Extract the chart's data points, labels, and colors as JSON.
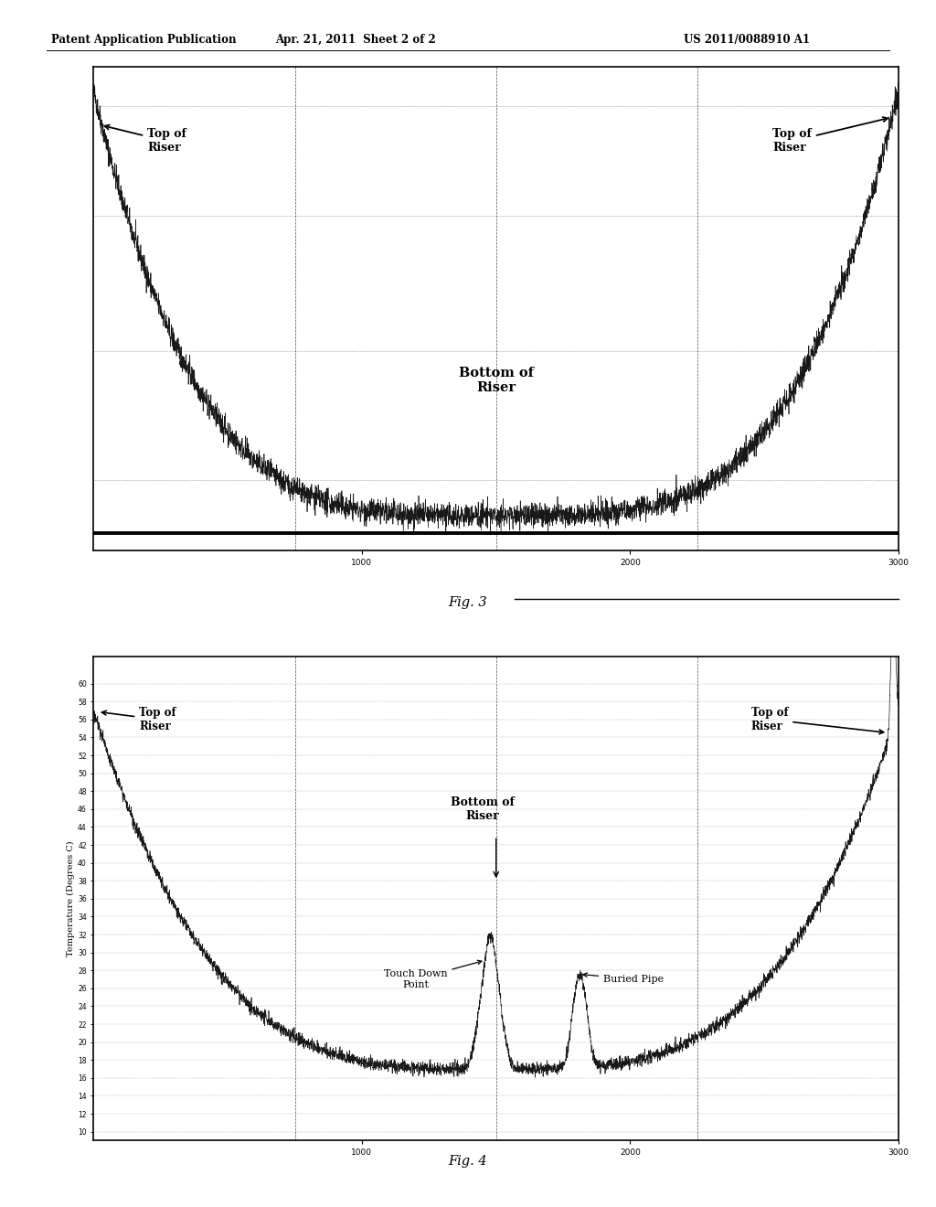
{
  "header_left": "Patent Application Publication",
  "header_mid": "Apr. 21, 2011  Sheet 2 of 2",
  "header_right": "US 2011/0088910 A1",
  "fig3_label": "Fig. 3",
  "fig4_label": "Fig. 4",
  "fig3_annotations": {
    "top_riser_left": "Top of\nRiser",
    "top_riser_right": "Top of\nRiser",
    "bottom_riser": "Bottom of\nRiser"
  },
  "fig4_annotations": {
    "top_riser_left": "Top of\nRiser",
    "top_riser_right": "Top of\nRiser",
    "bottom_riser": "Bottom of\nRiser",
    "touch_down": "Touch Down\nPoint",
    "buried_pipe": "Buried Pipe"
  },
  "bg_color": "#ffffff",
  "line_color": "#000000"
}
